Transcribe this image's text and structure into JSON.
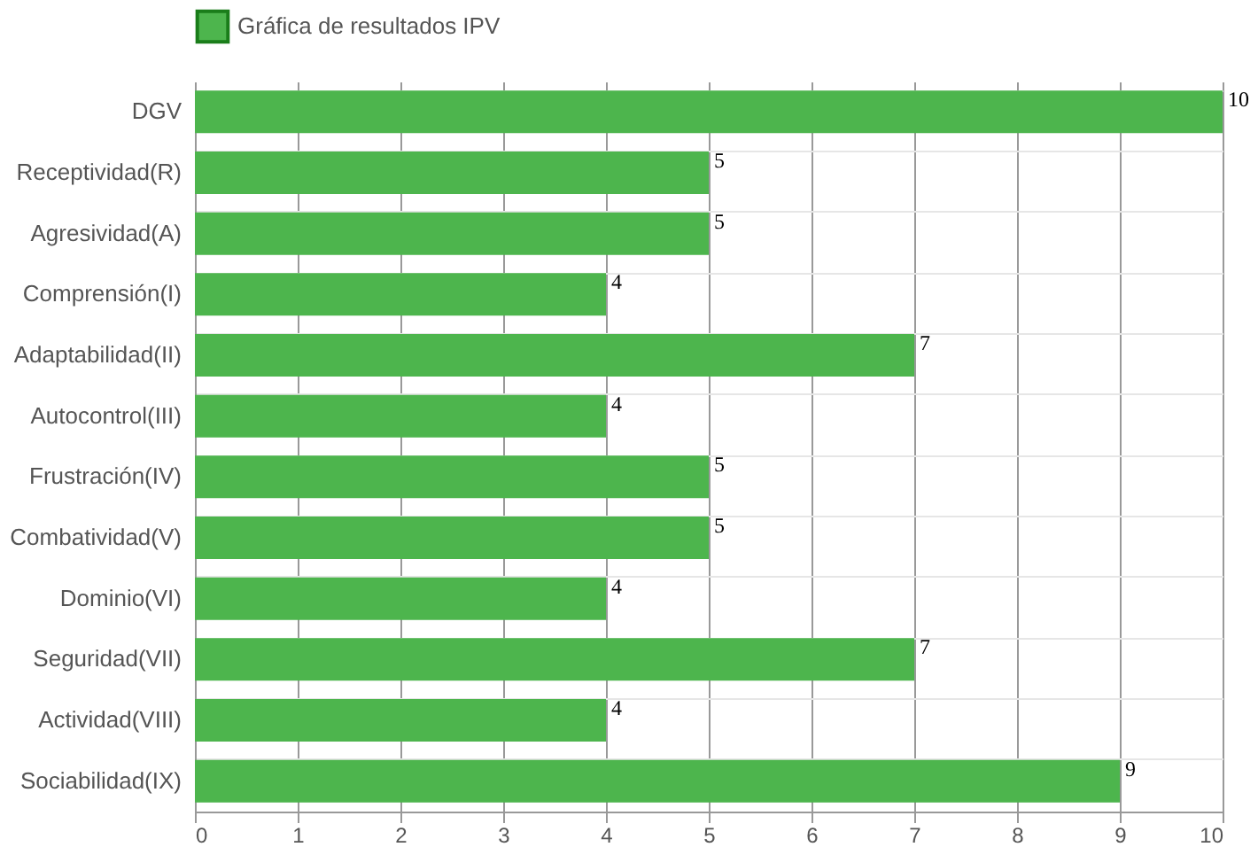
{
  "chart_data": {
    "type": "bar",
    "orientation": "horizontal",
    "categories": [
      "DGV",
      "Receptividad(R)",
      "Agresividad(A)",
      "Comprensión(I)",
      "Adaptabilidad(II)",
      "Autocontrol(III)",
      "Frustración(IV)",
      "Combatividad(V)",
      "Dominio(VI)",
      "Seguridad(VII)",
      "Actividad(VIII)",
      "Sociabilidad(IX)"
    ],
    "series": [
      {
        "name": "Gráfica de resultados IPV",
        "color": "#4db54d",
        "values": [
          10,
          5,
          5,
          4,
          7,
          4,
          5,
          5,
          4,
          7,
          4,
          9
        ]
      }
    ],
    "xlim": [
      0,
      10
    ],
    "xticks": [
      0,
      1,
      2,
      3,
      4,
      5,
      6,
      7,
      8,
      9,
      10
    ],
    "grid": true,
    "legend": "top",
    "data_labels": true
  }
}
